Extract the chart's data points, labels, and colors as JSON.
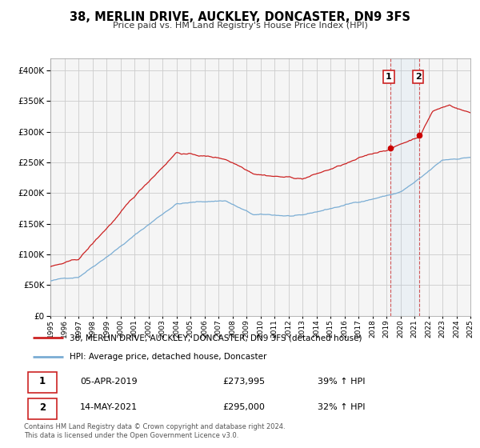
{
  "title": "38, MERLIN DRIVE, AUCKLEY, DONCASTER, DN9 3FS",
  "subtitle": "Price paid vs. HM Land Registry's House Price Index (HPI)",
  "legend_line1": "38, MERLIN DRIVE, AUCKLEY, DONCASTER, DN9 3FS (detached house)",
  "legend_line2": "HPI: Average price, detached house, Doncaster",
  "sale1_date": "05-APR-2019",
  "sale1_price": "£273,995",
  "sale1_hpi": "39% ↑ HPI",
  "sale2_date": "14-MAY-2021",
  "sale2_price": "£295,000",
  "sale2_hpi": "32% ↑ HPI",
  "footnote": "Contains HM Land Registry data © Crown copyright and database right 2024.\nThis data is licensed under the Open Government Licence v3.0.",
  "hpi_color": "#7aadd4",
  "price_color": "#cc2222",
  "marker_color": "#cc0000",
  "vline_color": "#cc3333",
  "background_color": "#ffffff",
  "plot_bg_color": "#f5f5f5",
  "grid_color": "#cccccc",
  "ylim": [
    0,
    420000
  ],
  "yticks": [
    0,
    50000,
    100000,
    150000,
    200000,
    250000,
    300000,
    350000,
    400000
  ],
  "sale1_year": 2019.27,
  "sale2_year": 2021.37
}
